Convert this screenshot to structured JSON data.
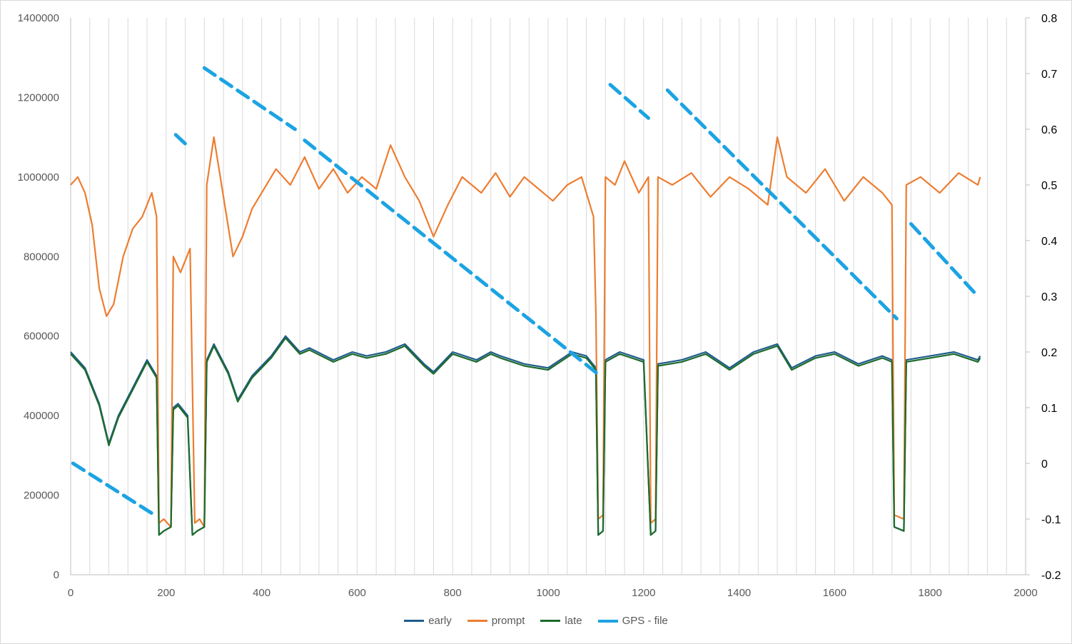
{
  "chart_data": {
    "type": "line",
    "title": "",
    "xlabel": "",
    "ylabel": "",
    "y2label": "",
    "xlim": [
      0,
      2000
    ],
    "ylim": [
      0,
      1400000
    ],
    "y2lim": [
      -0.2,
      0.8
    ],
    "x_ticks": [
      "0",
      "200",
      "400",
      "600",
      "800",
      "1000",
      "1200",
      "1400",
      "1600",
      "1800",
      "2000"
    ],
    "y_ticks": [
      "0",
      "200000",
      "400000",
      "600000",
      "800000",
      "1000000",
      "1200000",
      "1400000"
    ],
    "y2_ticks": [
      "-0.2",
      "-0.1",
      "0",
      "0.1",
      "0.2",
      "0.3",
      "0.4",
      "0.5",
      "0.6",
      "0.7",
      "0.8"
    ],
    "grid": "vertical",
    "legend_position": "bottom",
    "series": [
      {
        "name": "early",
        "axis": "left",
        "color": "#1f5c8b",
        "style": "solid",
        "x": [
          0,
          30,
          60,
          80,
          100,
          130,
          160,
          180,
          185,
          195,
          210,
          215,
          225,
          245,
          255,
          265,
          280,
          285,
          300,
          330,
          350,
          380,
          420,
          450,
          480,
          500,
          550,
          590,
          620,
          660,
          700,
          740,
          760,
          800,
          850,
          880,
          900,
          950,
          1000,
          1050,
          1080,
          1100,
          1105,
          1115,
          1120,
          1150,
          1200,
          1215,
          1225,
          1230,
          1280,
          1330,
          1380,
          1430,
          1480,
          1510,
          1560,
          1600,
          1650,
          1700,
          1720,
          1725,
          1745,
          1750,
          1800,
          1850,
          1900,
          1905
        ],
        "y": [
          560000,
          520000,
          430000,
          330000,
          400000,
          470000,
          540000,
          500000,
          100000,
          110000,
          120000,
          420000,
          430000,
          400000,
          100000,
          110000,
          120000,
          540000,
          580000,
          510000,
          440000,
          500000,
          550000,
          600000,
          560000,
          570000,
          540000,
          560000,
          550000,
          560000,
          580000,
          530000,
          510000,
          560000,
          540000,
          560000,
          550000,
          530000,
          520000,
          560000,
          550000,
          520000,
          100000,
          110000,
          540000,
          560000,
          540000,
          100000,
          110000,
          530000,
          540000,
          560000,
          520000,
          560000,
          580000,
          520000,
          550000,
          560000,
          530000,
          550000,
          540000,
          120000,
          110000,
          540000,
          550000,
          560000,
          540000,
          550000
        ]
      },
      {
        "name": "prompt",
        "axis": "left",
        "color": "#ed7d31",
        "style": "solid",
        "x": [
          0,
          15,
          30,
          45,
          60,
          75,
          90,
          110,
          130,
          150,
          170,
          180,
          185,
          195,
          210,
          215,
          230,
          250,
          260,
          270,
          280,
          285,
          300,
          320,
          340,
          360,
          380,
          400,
          430,
          460,
          490,
          520,
          550,
          580,
          610,
          640,
          670,
          700,
          730,
          760,
          790,
          820,
          860,
          890,
          920,
          950,
          980,
          1010,
          1040,
          1070,
          1095,
          1100,
          1105,
          1115,
          1120,
          1140,
          1160,
          1190,
          1210,
          1215,
          1225,
          1230,
          1260,
          1300,
          1340,
          1380,
          1420,
          1460,
          1480,
          1500,
          1540,
          1580,
          1620,
          1660,
          1700,
          1720,
          1725,
          1745,
          1750,
          1780,
          1820,
          1860,
          1900,
          1905
        ],
        "y": [
          980000,
          1000000,
          960000,
          880000,
          720000,
          650000,
          680000,
          800000,
          870000,
          900000,
          960000,
          900000,
          130000,
          140000,
          120000,
          800000,
          760000,
          820000,
          130000,
          140000,
          120000,
          980000,
          1100000,
          950000,
          800000,
          850000,
          920000,
          960000,
          1020000,
          980000,
          1050000,
          970000,
          1020000,
          960000,
          1000000,
          970000,
          1080000,
          1000000,
          940000,
          850000,
          930000,
          1000000,
          960000,
          1010000,
          950000,
          1000000,
          970000,
          940000,
          980000,
          1000000,
          900000,
          660000,
          140000,
          150000,
          1000000,
          980000,
          1040000,
          960000,
          1000000,
          130000,
          140000,
          1000000,
          980000,
          1010000,
          950000,
          1000000,
          970000,
          930000,
          1100000,
          1000000,
          960000,
          1020000,
          940000,
          1000000,
          960000,
          930000,
          150000,
          140000,
          980000,
          1000000,
          960000,
          1010000,
          980000,
          1000000
        ]
      },
      {
        "name": "late",
        "axis": "left",
        "color": "#1d6b2b",
        "style": "solid",
        "x": [
          0,
          30,
          60,
          80,
          100,
          130,
          160,
          180,
          185,
          195,
          210,
          215,
          225,
          245,
          255,
          265,
          280,
          285,
          300,
          330,
          350,
          380,
          420,
          450,
          480,
          500,
          550,
          590,
          620,
          660,
          700,
          740,
          760,
          800,
          850,
          880,
          900,
          950,
          1000,
          1050,
          1080,
          1100,
          1105,
          1115,
          1120,
          1150,
          1200,
          1215,
          1225,
          1230,
          1280,
          1330,
          1380,
          1430,
          1480,
          1510,
          1560,
          1600,
          1650,
          1700,
          1720,
          1725,
          1745,
          1750,
          1800,
          1850,
          1900,
          1905
        ],
        "y": [
          555000,
          515000,
          425000,
          325000,
          395000,
          465000,
          535000,
          495000,
          100000,
          110000,
          120000,
          415000,
          425000,
          395000,
          100000,
          110000,
          120000,
          535000,
          575000,
          505000,
          435000,
          495000,
          545000,
          595000,
          555000,
          565000,
          535000,
          555000,
          545000,
          555000,
          575000,
          525000,
          505000,
          555000,
          535000,
          555000,
          545000,
          525000,
          515000,
          555000,
          545000,
          515000,
          100000,
          110000,
          535000,
          555000,
          535000,
          100000,
          110000,
          525000,
          535000,
          555000,
          515000,
          555000,
          575000,
          515000,
          545000,
          555000,
          525000,
          545000,
          535000,
          120000,
          110000,
          535000,
          545000,
          555000,
          535000,
          545000
        ]
      },
      {
        "name": "GPS - file",
        "axis": "right",
        "color": "#1ca3e3",
        "style": "dashed",
        "segments": [
          {
            "x": [
              5,
              180
            ],
            "y": [
              0.0,
              -0.095
            ]
          },
          {
            "x": [
              220,
              245
            ],
            "y": [
              0.59,
              0.57
            ]
          },
          {
            "x": [
              280,
              470
            ],
            "y": [
              0.71,
              0.6
            ]
          },
          {
            "x": [
              490,
              1105
            ],
            "y": [
              0.58,
              0.16
            ]
          },
          {
            "x": [
              1130,
              1210
            ],
            "y": [
              0.68,
              0.62
            ]
          },
          {
            "x": [
              1250,
              1730
            ],
            "y": [
              0.67,
              0.26
            ]
          },
          {
            "x": [
              1760,
              1900
            ],
            "y": [
              0.43,
              0.3
            ]
          }
        ]
      }
    ]
  }
}
